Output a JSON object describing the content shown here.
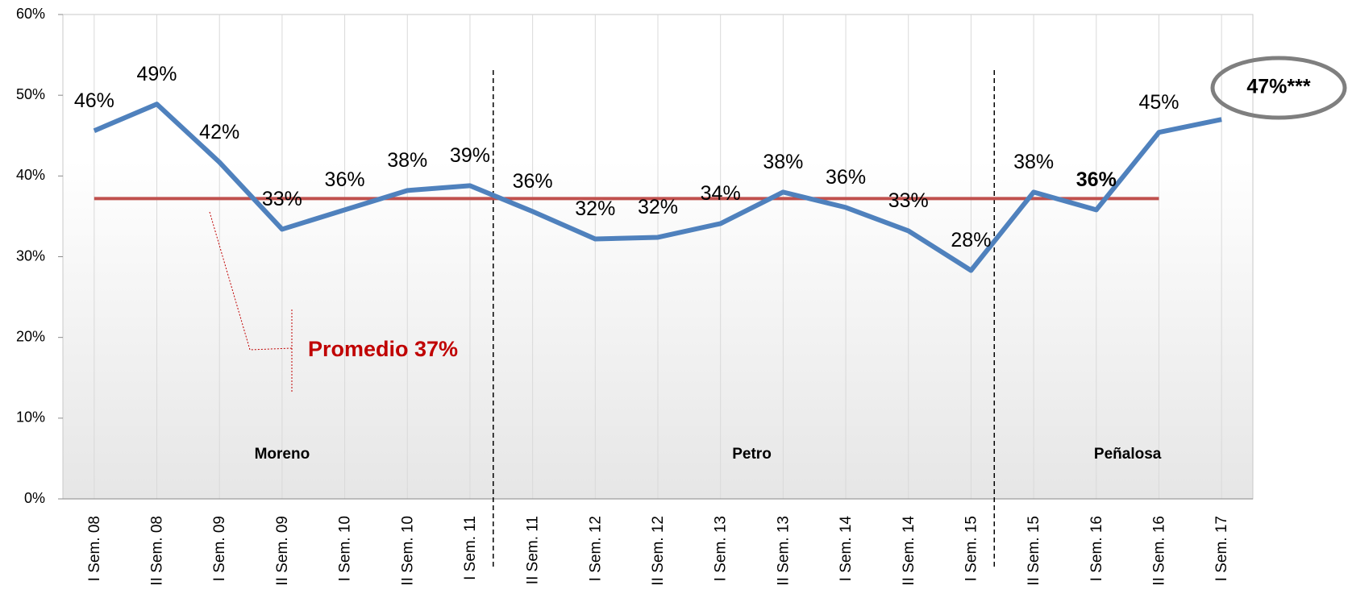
{
  "chart_data": {
    "type": "line",
    "categories": [
      "I Sem. 08",
      "II Sem. 08",
      "I Sem. 09",
      "II Sem. 09",
      "I Sem. 10",
      "II Sem. 10",
      "I Sem. 11",
      "II Sem. 11",
      "I Sem. 12",
      "II Sem. 12",
      "I Sem. 13",
      "II Sem. 13",
      "I Sem. 14",
      "II Sem. 14",
      "I Sem. 15",
      "II Sem. 15",
      "I Sem. 16",
      "II Sem. 16",
      "I Sem. 17"
    ],
    "values": [
      45.6,
      48.9,
      41.7,
      33.4,
      35.8,
      38.2,
      38.8,
      35.6,
      32.2,
      32.4,
      34.1,
      38.0,
      36.1,
      33.2,
      28.3,
      38.0,
      35.8,
      45.4,
      47.0
    ],
    "value_labels": [
      "46%",
      "49%",
      "42%",
      "33%",
      "36%",
      "38%",
      "39%",
      "36%",
      "32%",
      "32%",
      "34%",
      "38%",
      "36%",
      "33%",
      "28%",
      "38%",
      "36%",
      "45%",
      "47%***"
    ],
    "color": "#4f81bd",
    "average": {
      "label": "Promedio 37%",
      "value": 37.2,
      "color": "#c0504d"
    },
    "periods": [
      "Moreno",
      "Petro",
      "Peñalosa"
    ],
    "ylim": [
      0,
      60
    ],
    "yticks": [
      {
        "value": 0,
        "label": "0%"
      },
      {
        "value": 10,
        "label": "10%"
      },
      {
        "value": 20,
        "label": "20%"
      },
      {
        "value": 30,
        "label": "30%"
      },
      {
        "value": 40,
        "label": "40%"
      },
      {
        "value": 50,
        "label": "50%"
      },
      {
        "value": 60,
        "label": "60%"
      }
    ],
    "grid": true
  }
}
